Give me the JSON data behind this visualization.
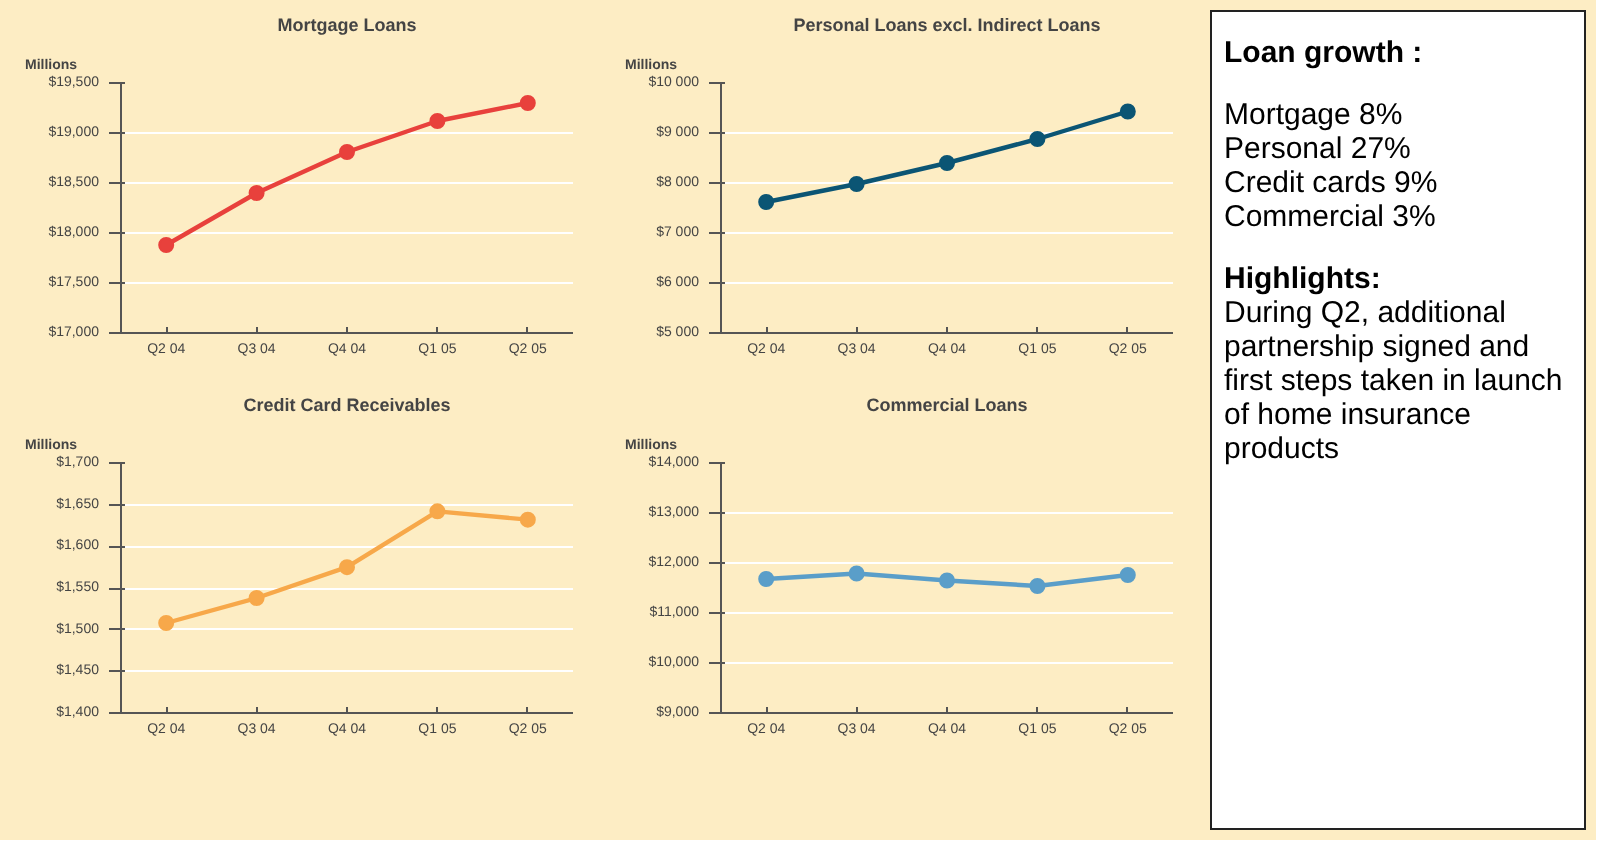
{
  "chart_data": [
    {
      "type": "line",
      "title": "Mortgage Loans",
      "ylabel": "Millions",
      "categories": [
        "Q2 04",
        "Q3 04",
        "Q4 04",
        "Q1 05",
        "Q2 05"
      ],
      "series": [
        {
          "color": "#e8413c",
          "values": [
            17880,
            18400,
            18810,
            19120,
            19300
          ]
        }
      ],
      "ylim": [
        17000,
        19500
      ],
      "yticks": [
        {
          "value": 17000,
          "label": "$17,000"
        },
        {
          "value": 17500,
          "label": "$17,500"
        },
        {
          "value": 18000,
          "label": "$18,000"
        },
        {
          "value": 18500,
          "label": "$18,500"
        },
        {
          "value": 19000,
          "label": "$19,000"
        },
        {
          "value": 19500,
          "label": "$19,500"
        }
      ],
      "grid": "y",
      "marker": "circle"
    },
    {
      "type": "line",
      "title": "Personal Loans excl. Indirect Loans",
      "ylabel": "Millions",
      "categories": [
        "Q2 04",
        "Q3 04",
        "Q4 04",
        "Q1 05",
        "Q2 05"
      ],
      "series": [
        {
          "color": "#0b5574",
          "values": [
            7620,
            7980,
            8400,
            8880,
            9430
          ]
        }
      ],
      "ylim": [
        5000,
        10000
      ],
      "yticks": [
        {
          "value": 5000,
          "label": "$5 000"
        },
        {
          "value": 6000,
          "label": "$6 000"
        },
        {
          "value": 7000,
          "label": "$7 000"
        },
        {
          "value": 8000,
          "label": "$8 000"
        },
        {
          "value": 9000,
          "label": "$9 000"
        },
        {
          "value": 10000,
          "label": "$10 000"
        }
      ],
      "grid": "y",
      "marker": "circle"
    },
    {
      "type": "line",
      "title": "Credit Card Receivables",
      "ylabel": "Millions",
      "categories": [
        "Q2 04",
        "Q3 04",
        "Q4 04",
        "Q1 05",
        "Q2 05"
      ],
      "series": [
        {
          "color": "#f7a84a",
          "values": [
            1508,
            1538,
            1575,
            1642,
            1632
          ]
        }
      ],
      "ylim": [
        1400,
        1700
      ],
      "yticks": [
        {
          "value": 1400,
          "label": "$1,400"
        },
        {
          "value": 1450,
          "label": "$1,450"
        },
        {
          "value": 1500,
          "label": "$1,500"
        },
        {
          "value": 1550,
          "label": "$1,550"
        },
        {
          "value": 1600,
          "label": "$1,600"
        },
        {
          "value": 1650,
          "label": "$1,650"
        },
        {
          "value": 1700,
          "label": "$1,700"
        }
      ],
      "grid": "y",
      "marker": "circle"
    },
    {
      "type": "line",
      "title": "Commercial Loans",
      "ylabel": "Millions",
      "categories": [
        "Q2 04",
        "Q3 04",
        "Q4 04",
        "Q1 05",
        "Q2 05"
      ],
      "series": [
        {
          "color": "#5a9ec9",
          "values": [
            11680,
            11790,
            11650,
            11540,
            11760
          ]
        }
      ],
      "ylim": [
        9000,
        14000
      ],
      "yticks": [
        {
          "value": 9000,
          "label": "$9,000"
        },
        {
          "value": 10000,
          "label": "$10,000"
        },
        {
          "value": 11000,
          "label": "$11,000"
        },
        {
          "value": 12000,
          "label": "$12,000"
        },
        {
          "value": 13000,
          "label": "$13,000"
        },
        {
          "value": 14000,
          "label": "$14,000"
        }
      ],
      "grid": "y",
      "marker": "circle"
    },
    {
      "type": "other",
      "title": "Loan growth :",
      "annotations": [
        "Mortgage 8%",
        "Personal 27%",
        "Credit cards 9%",
        "Commercial 3%"
      ]
    },
    {
      "type": "other",
      "title": "Highlights:",
      "annotations": [
        "During Q2, additional partnership signed and first steps taken in launch of home insurance products"
      ]
    }
  ]
}
